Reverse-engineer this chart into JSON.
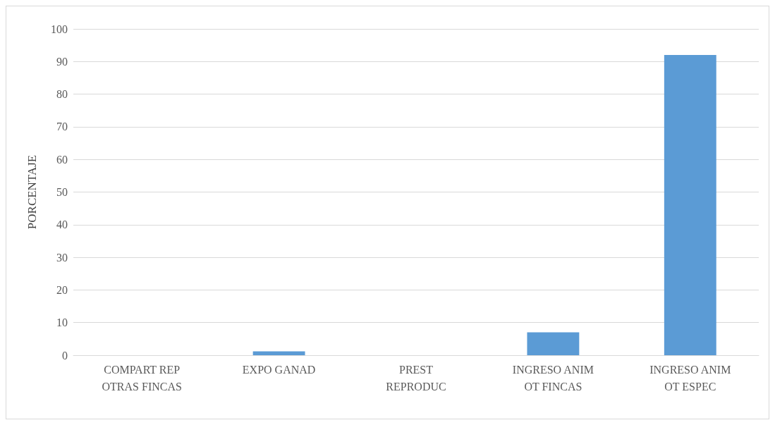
{
  "chart_data": {
    "type": "bar",
    "ylabel": "PORCENTAJE",
    "categories": [
      "COMPART REP\nOTRAS FINCAS",
      "EXPO GANAD",
      "PREST\nREPRODUC",
      "INGRESO ANIM\nOT FINCAS",
      "INGRESO ANIM\nOT ESPEC"
    ],
    "values": [
      0,
      1.2,
      0,
      7,
      92
    ],
    "color": "#5b9bd5",
    "ylim": [
      0,
      100
    ],
    "yticks": [
      0,
      10,
      20,
      30,
      40,
      50,
      60,
      70,
      80,
      90,
      100
    ],
    "grid": "y"
  }
}
